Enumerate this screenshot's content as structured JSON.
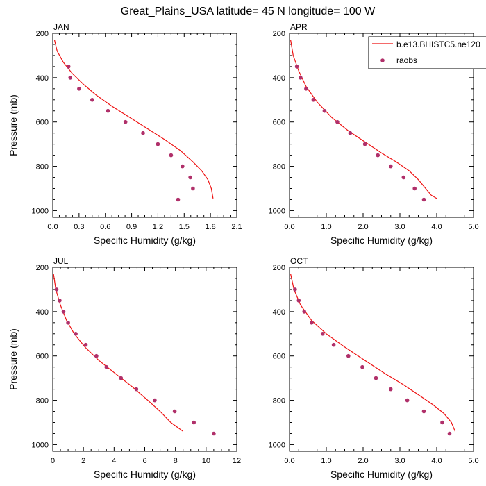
{
  "title": "Great_Plains_USA  latitude= 45 N longitude= 100 W",
  "colors": {
    "model": "#ee1111",
    "obs": "#b0306a",
    "axis": "#000000"
  },
  "legend": {
    "placement": "top-right",
    "model_label": "b.e13.BHISTC5.ne120",
    "obs_label": "raobs"
  },
  "chart_data": [
    {
      "type": "line",
      "panel": "JAN",
      "title": "JAN",
      "xlabel": "Specific Humidity (g/kg)",
      "ylabel": "Pressure (mb)",
      "xlim": [
        0,
        2.1
      ],
      "ylim": [
        1030,
        200
      ],
      "xticks": [
        "0.0",
        "0.3",
        "0.6",
        "0.9",
        "1.2",
        "1.5",
        "1.8",
        "2.1"
      ],
      "yticks": [
        "200",
        "400",
        "600",
        "800",
        "1000"
      ],
      "series": [
        {
          "name": "b.e13.BHISTC5.ne120",
          "kind": "line",
          "x": [
            0.02,
            0.05,
            0.12,
            0.22,
            0.35,
            0.5,
            0.68,
            0.88,
            1.08,
            1.28,
            1.46,
            1.6,
            1.7,
            1.77,
            1.81,
            1.83
          ],
          "y": [
            230,
            280,
            330,
            380,
            430,
            480,
            530,
            580,
            630,
            680,
            730,
            780,
            820,
            860,
            900,
            945
          ]
        },
        {
          "name": "raobs",
          "kind": "scatter",
          "x": [
            0.18,
            0.2,
            0.3,
            0.45,
            0.63,
            0.83,
            1.03,
            1.2,
            1.35,
            1.48,
            1.57,
            1.6,
            1.43
          ],
          "y": [
            350,
            400,
            450,
            500,
            550,
            600,
            650,
            700,
            750,
            800,
            850,
            900,
            950
          ]
        }
      ]
    },
    {
      "type": "line",
      "panel": "APR",
      "title": "APR",
      "xlabel": "Specific Humidity (g/kg)",
      "ylabel": "",
      "xlim": [
        0,
        5.0
      ],
      "ylim": [
        1030,
        200
      ],
      "xticks": [
        "0.0",
        "1.0",
        "2.0",
        "3.0",
        "4.0",
        "5.0"
      ],
      "yticks": [
        "200",
        "400",
        "600",
        "800",
        "1000"
      ],
      "series": [
        {
          "name": "b.e13.BHISTC5.ne120",
          "kind": "line",
          "x": [
            0.03,
            0.1,
            0.25,
            0.45,
            0.75,
            1.15,
            1.6,
            2.05,
            2.5,
            2.9,
            3.25,
            3.5,
            3.7,
            3.85,
            4.0
          ],
          "y": [
            230,
            300,
            370,
            440,
            510,
            580,
            640,
            690,
            740,
            780,
            820,
            860,
            900,
            930,
            945
          ]
        },
        {
          "name": "raobs",
          "kind": "scatter",
          "x": [
            0.2,
            0.3,
            0.45,
            0.65,
            0.95,
            1.3,
            1.65,
            2.05,
            2.4,
            2.75,
            3.1,
            3.4,
            3.65
          ],
          "y": [
            350,
            400,
            450,
            500,
            550,
            600,
            650,
            700,
            750,
            800,
            850,
            900,
            950
          ]
        }
      ]
    },
    {
      "type": "line",
      "panel": "JUL",
      "title": "JUL",
      "xlabel": "Specific Humidity (g/kg)",
      "ylabel": "Pressure (mb)",
      "xlim": [
        0,
        12
      ],
      "ylim": [
        1030,
        200
      ],
      "xticks": [
        "0",
        "2",
        "4",
        "6",
        "8",
        "10",
        "12"
      ],
      "yticks": [
        "200",
        "400",
        "600",
        "800",
        "1000"
      ],
      "series": [
        {
          "name": "b.e13.BHISTC5.ne120",
          "kind": "line",
          "x": [
            0.05,
            0.2,
            0.5,
            0.9,
            1.4,
            2.1,
            3.0,
            4.1,
            5.2,
            6.2,
            7.0,
            7.7,
            8.5
          ],
          "y": [
            230,
            300,
            370,
            440,
            500,
            560,
            620,
            680,
            740,
            800,
            850,
            900,
            940
          ]
        },
        {
          "name": "raobs",
          "kind": "scatter",
          "x": [
            0.25,
            0.45,
            0.7,
            1.0,
            1.5,
            2.15,
            2.85,
            3.5,
            4.45,
            5.45,
            6.65,
            7.95,
            9.2,
            10.5
          ],
          "y": [
            300,
            350,
            400,
            450,
            500,
            550,
            600,
            650,
            700,
            750,
            800,
            850,
            900,
            950
          ]
        }
      ]
    },
    {
      "type": "line",
      "panel": "OCT",
      "title": "OCT",
      "xlabel": "Specific Humidity (g/kg)",
      "ylabel": "",
      "xlim": [
        0,
        5.0
      ],
      "ylim": [
        1030,
        200
      ],
      "xticks": [
        "0.0",
        "1.0",
        "2.0",
        "3.0",
        "4.0",
        "5.0"
      ],
      "yticks": [
        "200",
        "400",
        "600",
        "800",
        "1000"
      ],
      "series": [
        {
          "name": "b.e13.BHISTC5.ne120",
          "kind": "line",
          "x": [
            0.03,
            0.12,
            0.3,
            0.6,
            1.0,
            1.5,
            2.05,
            2.6,
            3.1,
            3.55,
            3.9,
            4.2,
            4.4,
            4.5
          ],
          "y": [
            230,
            300,
            370,
            440,
            500,
            560,
            620,
            680,
            730,
            780,
            820,
            860,
            900,
            940
          ]
        },
        {
          "name": "raobs",
          "kind": "scatter",
          "x": [
            0.15,
            0.25,
            0.4,
            0.6,
            0.9,
            1.2,
            1.6,
            1.98,
            2.35,
            2.75,
            3.2,
            3.65,
            4.15,
            4.35
          ],
          "y": [
            300,
            350,
            400,
            450,
            500,
            550,
            600,
            650,
            700,
            750,
            800,
            850,
            900,
            950
          ]
        }
      ]
    }
  ]
}
